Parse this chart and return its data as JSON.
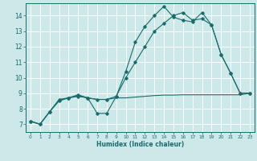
{
  "title": "",
  "xlabel": "Humidex (Indice chaleur)",
  "bg_color": "#cce8e8",
  "grid_color": "#ffffff",
  "line_color": "#1a6b6b",
  "xlim": [
    -0.5,
    23.5
  ],
  "ylim": [
    6.5,
    14.8
  ],
  "xticks": [
    0,
    1,
    2,
    3,
    4,
    5,
    6,
    7,
    8,
    9,
    10,
    11,
    12,
    13,
    14,
    15,
    16,
    17,
    18,
    19,
    20,
    21,
    22,
    23
  ],
  "yticks": [
    7,
    8,
    9,
    10,
    11,
    12,
    13,
    14
  ],
  "line1_x": [
    0,
    1,
    2,
    3,
    4,
    5,
    6,
    7,
    8,
    9,
    10,
    11,
    12,
    13,
    14,
    15,
    16,
    17,
    18,
    19,
    20,
    21,
    22,
    23
  ],
  "line1_y": [
    7.2,
    7.0,
    7.8,
    8.6,
    8.7,
    8.9,
    8.7,
    7.7,
    7.7,
    8.8,
    10.4,
    12.3,
    13.3,
    14.0,
    14.6,
    13.9,
    13.7,
    13.6,
    14.2,
    13.4,
    11.5,
    10.3,
    9.0,
    9.0
  ],
  "line2_x": [
    0,
    1,
    2,
    3,
    4,
    5,
    6,
    7,
    8,
    9,
    10,
    11,
    12,
    13,
    14,
    15,
    16,
    17,
    18,
    19,
    20,
    21,
    22,
    23
  ],
  "line2_y": [
    7.2,
    7.0,
    7.8,
    8.55,
    8.7,
    8.85,
    8.7,
    8.6,
    8.6,
    8.7,
    8.7,
    8.75,
    8.8,
    8.85,
    8.88,
    8.88,
    8.9,
    8.9,
    8.9,
    8.9,
    8.9,
    8.9,
    8.9,
    9.0
  ],
  "line3_x": [
    0,
    1,
    2,
    3,
    4,
    5,
    6,
    7,
    8,
    9,
    10,
    11,
    12,
    13,
    14,
    15,
    16,
    17,
    18,
    19,
    20,
    21,
    22,
    23
  ],
  "line3_y": [
    7.2,
    7.0,
    7.8,
    8.5,
    8.7,
    8.8,
    8.7,
    8.6,
    8.6,
    8.8,
    10.0,
    11.0,
    12.0,
    13.0,
    13.5,
    14.0,
    14.2,
    13.7,
    13.8,
    13.4,
    11.5,
    10.3,
    9.0,
    9.0
  ]
}
